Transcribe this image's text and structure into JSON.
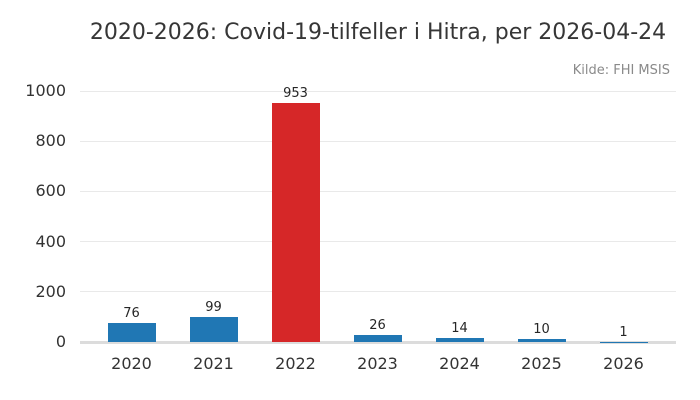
{
  "colors": {
    "background": "#ffffff",
    "bar_default": "#2077b4",
    "bar_highlight": "#d62728",
    "gridline": "#e9e9e9",
    "axis_line": "#dcdcdc",
    "title_text": "#363636",
    "tick_text": "#333333",
    "value_text": "#262626",
    "source_text": "#8a8a8a"
  },
  "chart_data": {
    "type": "bar",
    "title": "2020-2026: Covid-19-tilfeller i Hitra, per 2026-04-24",
    "source": "Kilde: FHI MSIS",
    "categories": [
      "2020",
      "2021",
      "2022",
      "2023",
      "2024",
      "2025",
      "2026"
    ],
    "values": [
      76,
      99,
      953,
      26,
      14,
      10,
      1
    ],
    "bar_colors": [
      "#2077b4",
      "#2077b4",
      "#d62728",
      "#2077b4",
      "#2077b4",
      "#2077b4",
      "#2077b4"
    ],
    "highlighted_category": "2022",
    "value_labels": [
      76,
      99,
      953,
      26,
      14,
      10,
      1
    ],
    "xlabel": "",
    "ylabel": "",
    "ylim": [
      0,
      1000
    ],
    "yticks": [
      0,
      200,
      400,
      600,
      800,
      1000
    ],
    "grid": "horizontal-only",
    "legend": "none"
  }
}
